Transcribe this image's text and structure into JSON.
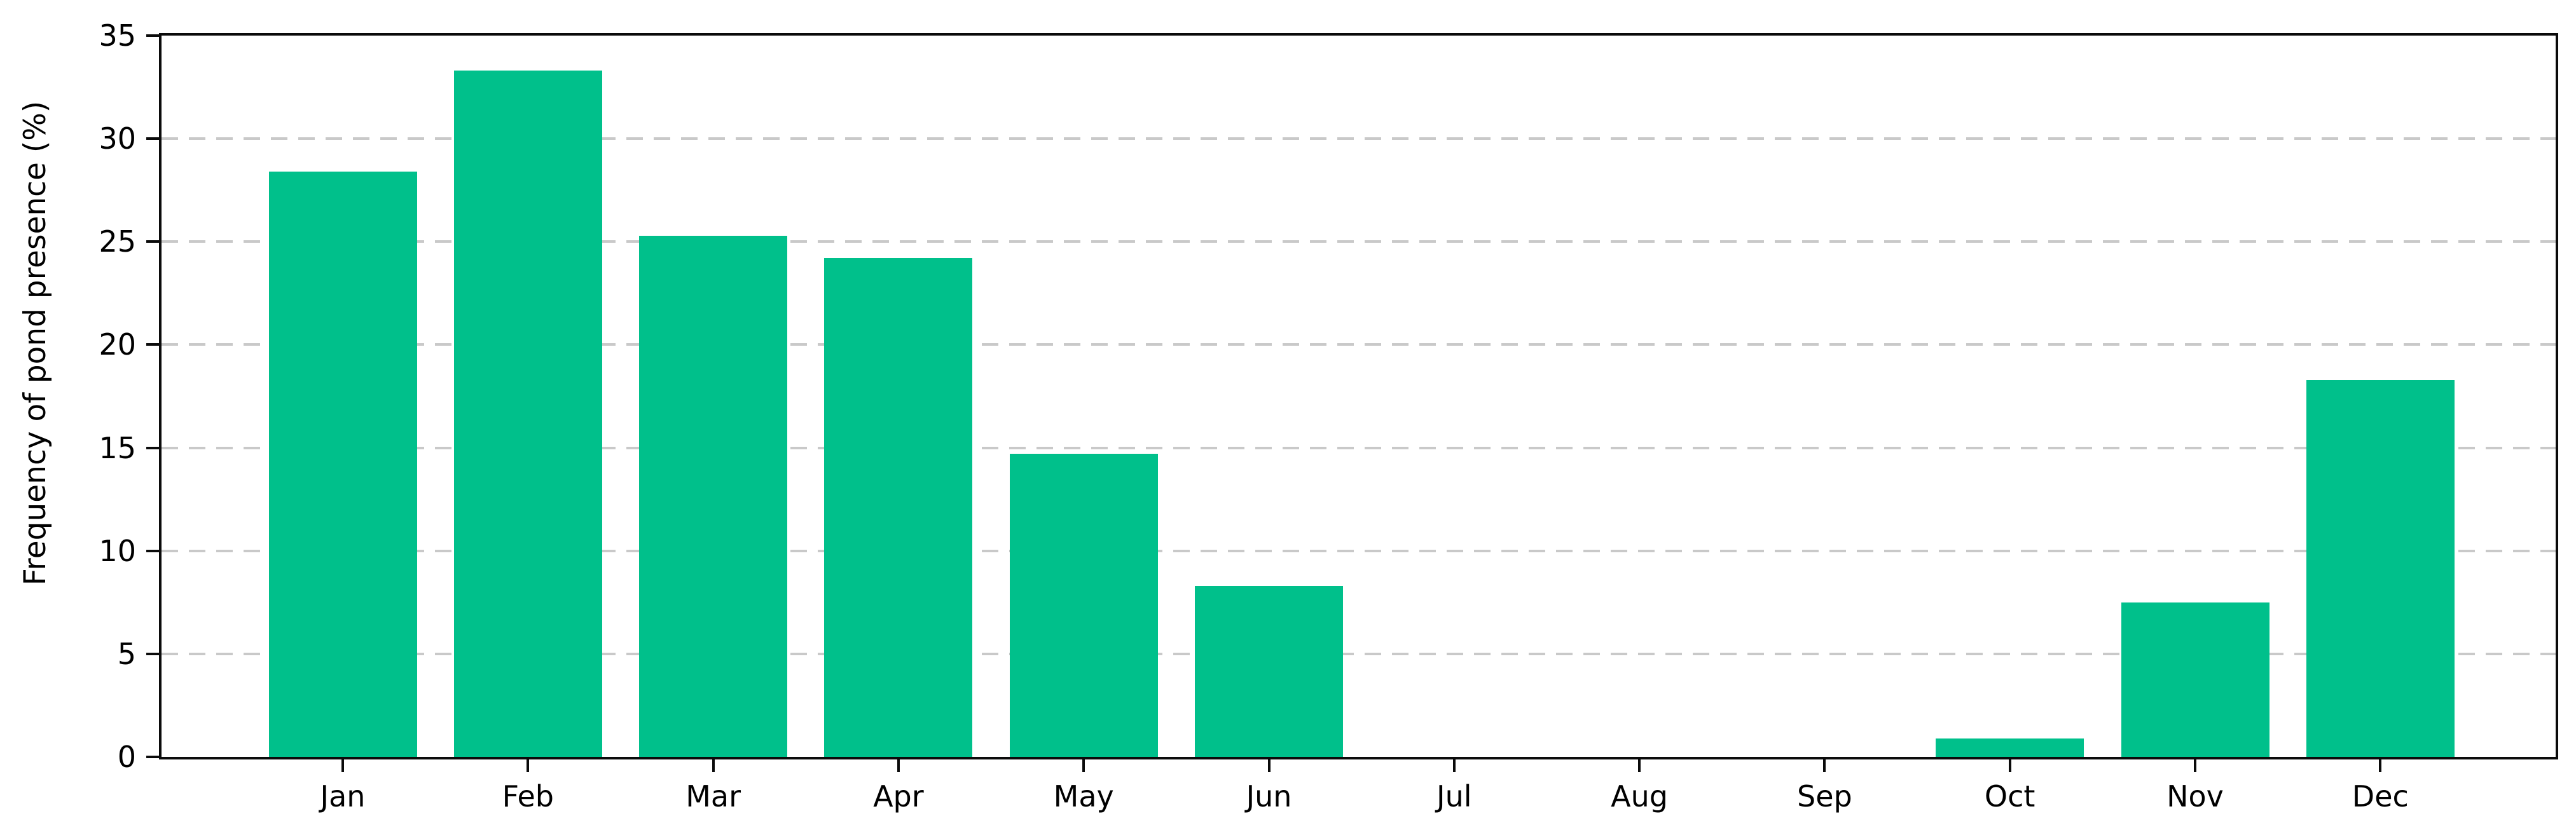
{
  "chart_data": {
    "type": "bar",
    "title": "",
    "categories": [
      "Jan",
      "Feb",
      "Mar",
      "Apr",
      "May",
      "Jun",
      "Jul",
      "Aug",
      "Sep",
      "Oct",
      "Nov",
      "Dec"
    ],
    "values": [
      28.4,
      33.3,
      25.3,
      24.2,
      14.7,
      8.3,
      0,
      0,
      0,
      0.9,
      7.5,
      18.3
    ],
    "xlabel": "",
    "ylabel": "Frequency of pond presence (%)",
    "ylim": [
      0,
      35
    ],
    "yticks": [
      0,
      5,
      10,
      15,
      20,
      25,
      30,
      35
    ],
    "grid": "horizontal-dashed",
    "legend_position": "none",
    "bar_color": "#00C08B",
    "gridline_color": "#c9c9c9",
    "axis_color": "#0b0b0b",
    "background_color": "#ffffff"
  }
}
